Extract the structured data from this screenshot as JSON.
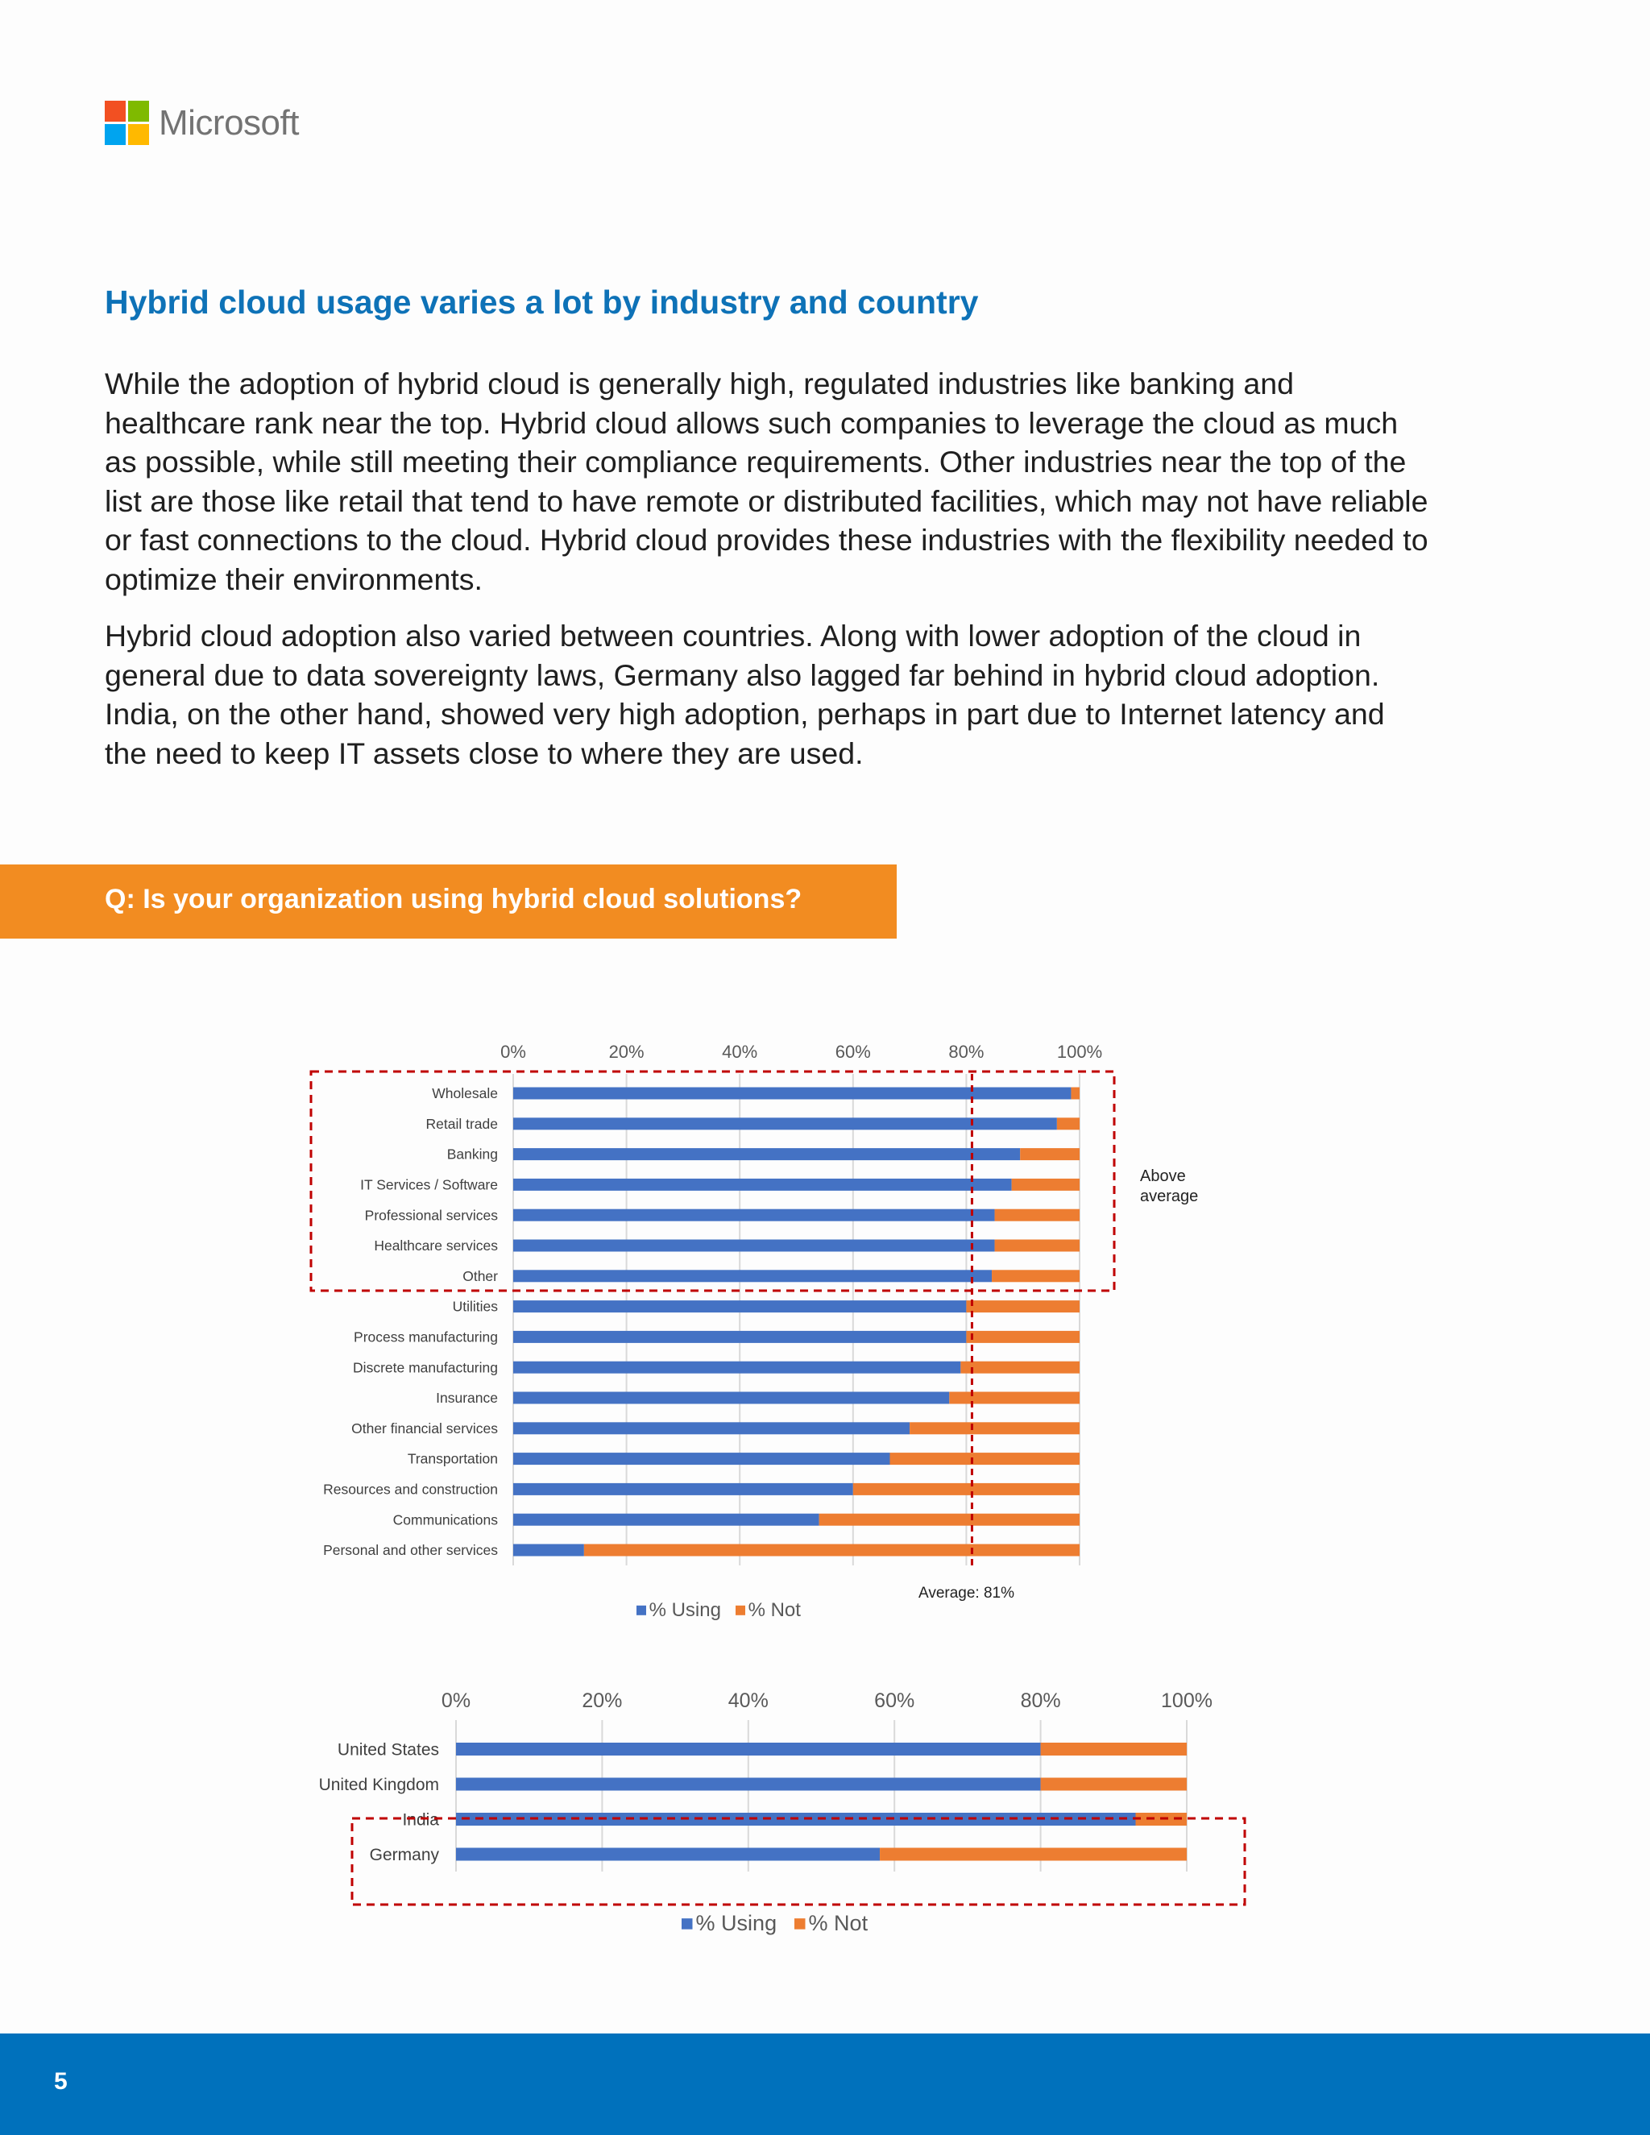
{
  "brand": {
    "name": "Microsoft",
    "colors": [
      "#f25022",
      "#7fba00",
      "#00a4ef",
      "#ffb900"
    ]
  },
  "heading": "Hybrid cloud usage varies a lot by industry and country",
  "paragraphs": {
    "p1": [
      "While the adoption of hybrid cloud is generally high, regulated industries like banking and",
      "healthcare rank near the top. Hybrid cloud allows such companies to leverage the cloud as much",
      "as possible, while still meeting their compliance requirements. Other industries near the top of the",
      "list are those like retail that tend to have remote or distributed facilities, which may not have reliable",
      "or fast connections to the cloud. Hybrid cloud provides these industries with the flexibility needed to",
      "optimize their environments."
    ],
    "p2": [
      "Hybrid cloud adoption also varied between countries. Along with lower adoption of the cloud in",
      "general due to data sovereignty laws, Germany also lagged far behind in hybrid cloud adoption.",
      "India, on the other hand, showed very high adoption, perhaps in part due to Internet latency and",
      "the need to keep IT assets close to where they are used."
    ]
  },
  "question": "Q: Is your organization using hybrid cloud solutions?",
  "colors": {
    "using": "#4472c4",
    "not": "#ed7d31",
    "highlight": "#c00000"
  },
  "chart_data": [
    {
      "type": "bar",
      "orientation": "horizontal",
      "stacked": true,
      "categories": [
        "Wholesale",
        "Retail trade",
        "Banking",
        "IT Services / Software",
        "Professional services",
        "Healthcare services",
        "Other",
        "Utilities",
        "Process manufacturing",
        "Discrete manufacturing",
        "Insurance",
        "Other financial services",
        "Transportation",
        "Resources and construction",
        "Communications",
        "Personal and other services"
      ],
      "series": [
        {
          "name": "% Using",
          "values": [
            98.5,
            96,
            89.5,
            88,
            85,
            85,
            84.5,
            80,
            80,
            79,
            77,
            70,
            66.5,
            60,
            54,
            12.5
          ]
        },
        {
          "name": "% Not",
          "values": [
            1.5,
            4,
            10.5,
            12,
            15,
            15,
            15.5,
            20,
            20,
            21,
            23,
            30,
            33.5,
            40,
            46,
            87.5
          ]
        }
      ],
      "xlim": [
        0,
        100
      ],
      "xticks": [
        "0%",
        "20%",
        "40%",
        "60%",
        "80%",
        "100%"
      ],
      "reference_line": {
        "value": 81,
        "label": "Average: 81%"
      },
      "highlight": {
        "label": "Above average",
        "label_lines": [
          "Above",
          "average"
        ],
        "categories": [
          "Wholesale",
          "Retail trade",
          "Banking",
          "IT Services / Software",
          "Professional services",
          "Healthcare services",
          "Other"
        ]
      },
      "legend": "bottom"
    },
    {
      "type": "bar",
      "orientation": "horizontal",
      "stacked": true,
      "categories": [
        "United States",
        "United Kingdom",
        "India",
        "Germany"
      ],
      "series": [
        {
          "name": "% Using",
          "values": [
            80,
            80,
            93,
            58
          ]
        },
        {
          "name": "% Not",
          "values": [
            20,
            20,
            7,
            42
          ]
        }
      ],
      "xlim": [
        0,
        100
      ],
      "xticks": [
        "0%",
        "20%",
        "40%",
        "60%",
        "80%",
        "100%"
      ],
      "highlight": {
        "categories": [
          "India",
          "Germany"
        ]
      },
      "legend": "bottom"
    }
  ],
  "page_number": "5"
}
